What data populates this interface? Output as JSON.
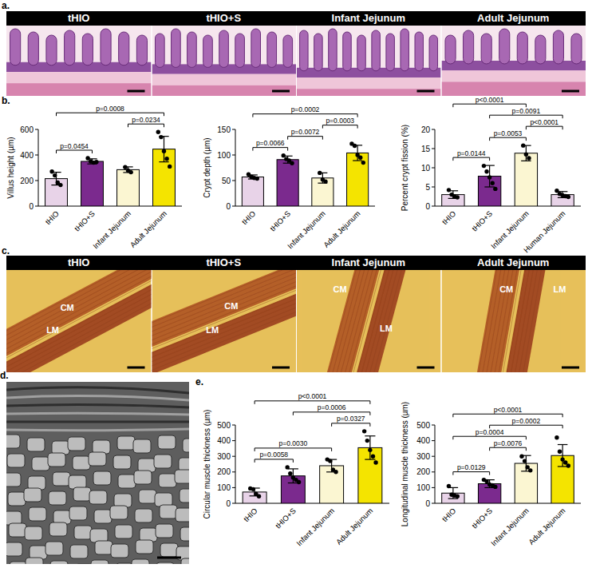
{
  "panel_labels": [
    "a.",
    "b.",
    "c.",
    "d.",
    "e."
  ],
  "image_rows": [
    {
      "headers": [
        "tHIO",
        "tHIO+S",
        "Infant Jejunum",
        "Adult Jejunum"
      ]
    },
    {
      "headers": [
        "tHIO",
        "tHIO+S",
        "Infant Jejunum",
        "Adult Jejunum"
      ],
      "labels": [
        [
          "CM",
          "LM"
        ],
        [
          "CM",
          "LM"
        ],
        [
          "CM",
          "LM"
        ],
        [
          "CM",
          "LM"
        ]
      ]
    }
  ],
  "chart_data": [
    {
      "type": "bar",
      "ylabel": "Villus height (µm)",
      "categories": [
        "tHIO",
        "tHIO+S",
        "Infant Jejunum",
        "Adult Jejunum"
      ],
      "values": [
        215,
        350,
        285,
        446
      ],
      "errors": [
        50,
        20,
        22,
        100
      ],
      "points": [
        [
          270,
          240,
          185,
          165
        ],
        [
          375,
          350,
          340,
          345
        ],
        [
          305,
          278,
          265
        ],
        [
          580,
          540,
          430,
          370,
          310
        ]
      ],
      "colors": [
        "#e8d3e8",
        "#7b2a8e",
        "#fbf6d2",
        "#f4e400"
      ],
      "ylim": [
        0,
        600
      ],
      "yticks": [
        0,
        200,
        400,
        600
      ],
      "annotations": [
        {
          "from": 0,
          "to": 1,
          "text": "p=0.0454"
        },
        {
          "from": 2,
          "to": 3,
          "text": "p=0.0234"
        },
        {
          "from": 0,
          "to": 3,
          "text": "p=0.0008"
        }
      ]
    },
    {
      "type": "bar",
      "ylabel": "Crypt depth (µm)",
      "categories": [
        "tHIO",
        "tHIO+S",
        "Infant Jejunum",
        "Adult Jejunum"
      ],
      "values": [
        57,
        91,
        55,
        104
      ],
      "errors": [
        4,
        7,
        10,
        15
      ],
      "points": [
        [
          62,
          57,
          55,
          54
        ],
        [
          99,
          92,
          89,
          84
        ],
        [
          65,
          52,
          48
        ],
        [
          122,
          118,
          100,
          95,
          85
        ]
      ],
      "colors": [
        "#e8d3e8",
        "#7b2a8e",
        "#fbf6d2",
        "#f4e400"
      ],
      "ylim": [
        0,
        150
      ],
      "yticks": [
        0,
        50,
        100,
        150
      ],
      "annotations": [
        {
          "from": 0,
          "to": 1,
          "text": "p=0.0066"
        },
        {
          "from": 1,
          "to": 2,
          "text": "p=0.0072"
        },
        {
          "from": 2,
          "to": 3,
          "text": "p=0.0003"
        },
        {
          "from": 0,
          "to": 3,
          "text": "p=0.0002"
        }
      ]
    },
    {
      "type": "bar",
      "ylabel": "Percent crypt fission (%)",
      "categories": [
        "tHIO",
        "tHIO+S",
        "Infant Jejunum",
        "Human Jejunum"
      ],
      "values": [
        3,
        7.8,
        13.8,
        3
      ],
      "errors": [
        1,
        2.8,
        2,
        0.8
      ],
      "points": [
        [
          4.2,
          3,
          2.5,
          2.3
        ],
        [
          10.5,
          9,
          7.5,
          6,
          4.5
        ],
        [
          15.8,
          13.5,
          12.5
        ],
        [
          4,
          3.2,
          2.8,
          2.6,
          2.4
        ]
      ],
      "colors": [
        "#e8d3e8",
        "#7b2a8e",
        "#fbf6d2",
        "#e8d3e8"
      ],
      "ylim": [
        0,
        20
      ],
      "yticks": [
        0,
        5,
        10,
        15,
        20
      ],
      "annotations": [
        {
          "from": 0,
          "to": 1,
          "text": "p=0.0144"
        },
        {
          "from": 1,
          "to": 2,
          "text": "p=0.0053"
        },
        {
          "from": 2,
          "to": 3,
          "text": "p<0.0001"
        },
        {
          "from": 1,
          "to": 3,
          "text": "p=0.0091"
        },
        {
          "from": 0,
          "to": 2,
          "text": "p<0.0001"
        }
      ]
    },
    {
      "type": "bar",
      "ylabel": "Circular muscle thickness (µm)",
      "categories": [
        "tHIO",
        "tHIO+S",
        "Infant Jejunum",
        "Adult Jejunum"
      ],
      "values": [
        72,
        175,
        240,
        355
      ],
      "errors": [
        25,
        45,
        40,
        75
      ],
      "points": [
        [
          95,
          90,
          60,
          45
        ],
        [
          230,
          190,
          165,
          150,
          135
        ],
        [
          280,
          270,
          215,
          200
        ],
        [
          460,
          400,
          340,
          300,
          260
        ]
      ],
      "colors": [
        "#e8d3e8",
        "#7b2a8e",
        "#fbf6d2",
        "#f4e400"
      ],
      "ylim": [
        0,
        500
      ],
      "yticks": [
        0,
        100,
        200,
        300,
        400,
        500
      ],
      "annotations": [
        {
          "from": 0,
          "to": 1,
          "text": "p=0.0058"
        },
        {
          "from": 0,
          "to": 2,
          "text": "p=0.0030"
        },
        {
          "from": 2,
          "to": 3,
          "text": "p=0.0327"
        },
        {
          "from": 1,
          "to": 3,
          "text": "p=0.0006"
        },
        {
          "from": 0,
          "to": 3,
          "text": "p<0.0001"
        }
      ]
    },
    {
      "type": "bar",
      "ylabel": "Longitudinal muscle thickness (µm)",
      "categories": [
        "tHIO",
        "tHIO+S",
        "Infant Jejunum",
        "Adult Jejunum"
      ],
      "values": [
        65,
        125,
        255,
        305
      ],
      "errors": [
        35,
        25,
        50,
        70
      ],
      "points": [
        [
          110,
          55,
          50,
          45
        ],
        [
          150,
          140,
          120,
          115,
          105
        ],
        [
          300,
          270,
          230,
          210
        ],
        [
          420,
          330,
          280,
          260,
          240
        ]
      ],
      "colors": [
        "#e8d3e8",
        "#7b2a8e",
        "#fbf6d2",
        "#f4e400"
      ],
      "ylim": [
        0,
        500
      ],
      "yticks": [
        0,
        100,
        200,
        300,
        400,
        500
      ],
      "annotations": [
        {
          "from": 0,
          "to": 1,
          "text": "p=0.0129"
        },
        {
          "from": 1,
          "to": 2,
          "text": "p=0.0076"
        },
        {
          "from": 0,
          "to": 2,
          "text": "p=0.0004"
        },
        {
          "from": 1,
          "to": 3,
          "text": "p=0.0002"
        },
        {
          "from": 0,
          "to": 3,
          "text": "p<0.0001"
        }
      ]
    }
  ]
}
